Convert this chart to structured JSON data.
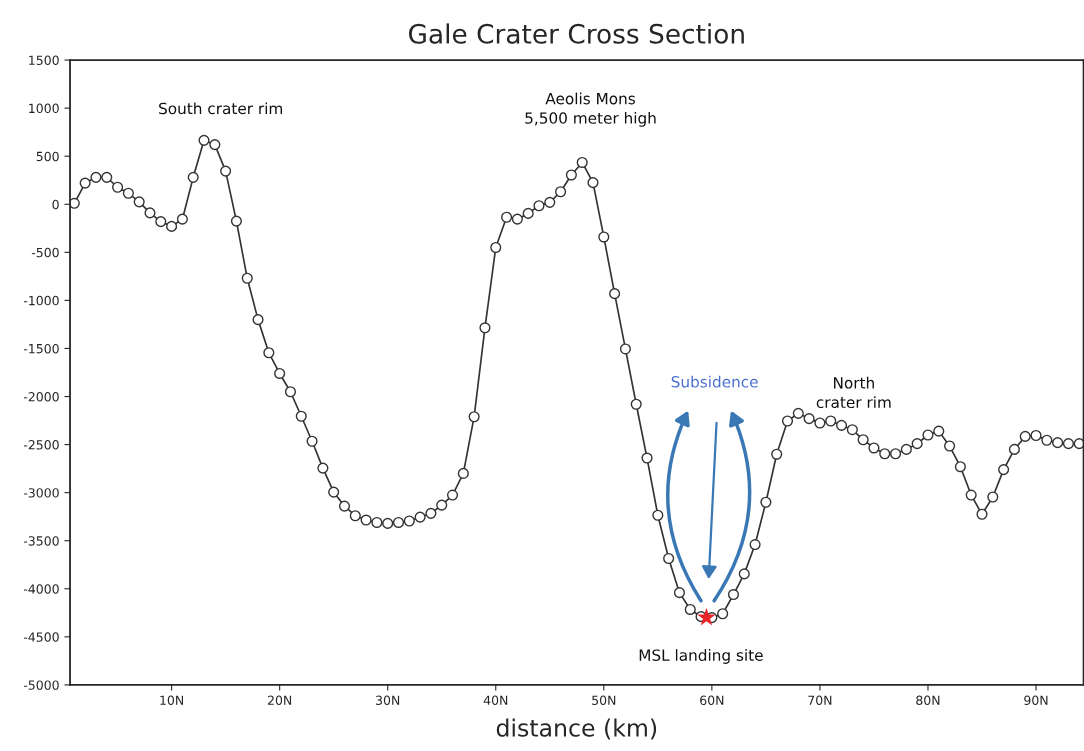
{
  "chart_data": {
    "type": "line",
    "title": "Gale Crater Cross Section",
    "xlabel": "distance (km)",
    "xlim": [
      0.6,
      94.4
    ],
    "ylim": [
      -5000,
      1500
    ],
    "xticks": [
      {
        "value": 10,
        "label": "10N"
      },
      {
        "value": 20,
        "label": "20N"
      },
      {
        "value": 30,
        "label": "30N"
      },
      {
        "value": 40,
        "label": "40N"
      },
      {
        "value": 50,
        "label": "50N"
      },
      {
        "value": 60,
        "label": "60N"
      },
      {
        "value": 70,
        "label": "70N"
      },
      {
        "value": 80,
        "label": "80N"
      },
      {
        "value": 90,
        "label": "90N"
      }
    ],
    "yticks": [
      -5000,
      -4500,
      -4000,
      -3500,
      -3000,
      -2500,
      -2000,
      -1500,
      -1000,
      -500,
      0,
      500,
      1000,
      1500
    ],
    "grid": false,
    "legend": false,
    "marker": "circle",
    "line_style": "solid",
    "series": [
      {
        "color": "#333333",
        "x": [
          1,
          2,
          3,
          4,
          5,
          6,
          7,
          8,
          9,
          10,
          11,
          12,
          13,
          14,
          15,
          16,
          17,
          18,
          19,
          20,
          21,
          22,
          23,
          24,
          25,
          26,
          27,
          28,
          29,
          30,
          31,
          32,
          33,
          34,
          35,
          36,
          37,
          38,
          39,
          40,
          41,
          42,
          43,
          44,
          45,
          46,
          47,
          48,
          49,
          50,
          51,
          52,
          53,
          54,
          55,
          56,
          57,
          58,
          59,
          60,
          61,
          62,
          63,
          64,
          65,
          66,
          67,
          68,
          69,
          70,
          71,
          72,
          73,
          74,
          75,
          76,
          77,
          78,
          79,
          80,
          81,
          82,
          83,
          84,
          85,
          86,
          87,
          88,
          89,
          90,
          91,
          92,
          93,
          94
        ],
        "values": [
          10,
          220,
          280,
          280,
          177,
          115,
          25,
          -90,
          -180,
          -230,
          -155,
          280,
          665,
          620,
          345,
          -175,
          -770,
          -1200,
          -1545,
          -1760,
          -1950,
          -2205,
          -2465,
          -2745,
          -2995,
          -3140,
          -3240,
          -3285,
          -3310,
          -3320,
          -3310,
          -3295,
          -3255,
          -3215,
          -3130,
          -3025,
          -2800,
          -2210,
          -1285,
          -450,
          -135,
          -155,
          -95,
          -15,
          20,
          130,
          305,
          435,
          225,
          -340,
          -930,
          -1505,
          -2080,
          -2640,
          -3235,
          -3685,
          -4040,
          -4215,
          -4290,
          -4300,
          -4260,
          -4060,
          -3845,
          -3540,
          -3100,
          -2600,
          -2255,
          -2175,
          -2230,
          -2275,
          -2255,
          -2300,
          -2345,
          -2450,
          -2535,
          -2595,
          -2595,
          -2550,
          -2490,
          -2400,
          -2360,
          -2515,
          -2730,
          -3025,
          -3225,
          -3045,
          -2760,
          -2550,
          -2415,
          -2405,
          -2455,
          -2480,
          -2490,
          -2490
        ]
      },
      {
        "type": "scatter",
        "color": "#e8262a",
        "marker": "star",
        "x": [
          59.5
        ],
        "values": [
          -4300
        ]
      }
    ],
    "annotations": [
      {
        "text": "South crater rim",
        "x": 13,
        "y": 665
      },
      {
        "text": "Aeolis Mons\n5,500 meter high",
        "x": 48,
        "y": 435
      },
      {
        "text": "North\ncrater rim",
        "x": 68,
        "y": -2175
      },
      {
        "text": "MSL landing site",
        "x": 59.5,
        "y": -4300
      },
      "Subsidence"
    ]
  }
}
